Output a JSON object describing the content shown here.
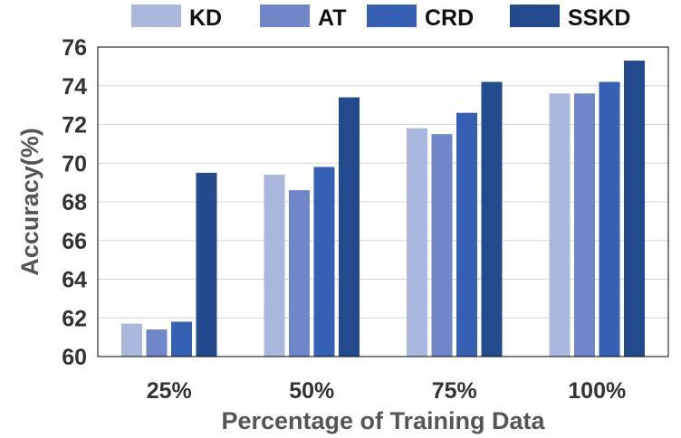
{
  "chart_data": {
    "type": "bar",
    "title": "",
    "xlabel": "Percentage of Training Data",
    "ylabel": "Accuracy(%)",
    "ylim": [
      60,
      76
    ],
    "yticks": [
      "60",
      "62",
      "64",
      "66",
      "68",
      "70",
      "72",
      "74",
      "76"
    ],
    "grid": true,
    "legend_position": "top",
    "categories": [
      "25%",
      "50%",
      "75%",
      "100%"
    ],
    "series": [
      {
        "name": "KD",
        "color": "#aab8de",
        "values": [
          61.7,
          69.4,
          71.8,
          73.6
        ]
      },
      {
        "name": "AT",
        "color": "#6f86c8",
        "values": [
          61.4,
          68.6,
          71.5,
          73.6
        ]
      },
      {
        "name": "CRD",
        "color": "#3560b4",
        "values": [
          61.8,
          69.8,
          72.6,
          74.2
        ]
      },
      {
        "name": "SSKD",
        "color": "#224a8c",
        "values": [
          69.5,
          73.4,
          74.2,
          75.3
        ]
      }
    ]
  }
}
